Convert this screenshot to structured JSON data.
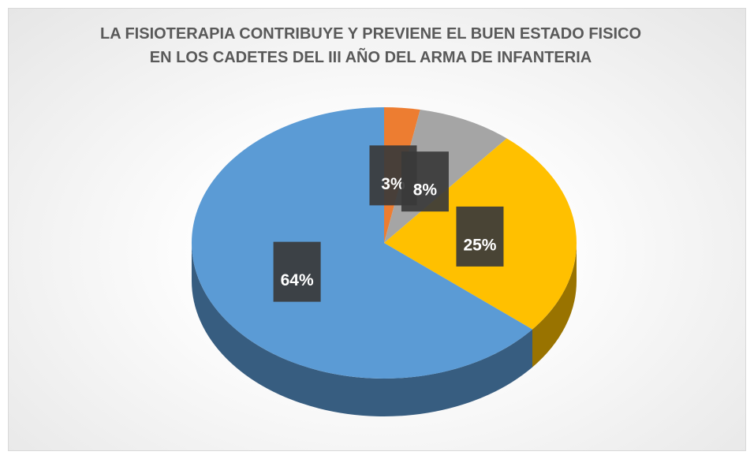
{
  "chart_data": {
    "type": "pie",
    "title": "LA FISIOTERAPIA CONTRIBUYE Y PREVIENE EL BUEN ESTADO FISICO EN LOS CADETES DEL III AÑO DEL ARMA DE INFANTERIA",
    "values": [
      3,
      8,
      25,
      64
    ],
    "value_labels": [
      "3%",
      "8%",
      "25%",
      "64%"
    ],
    "colors": [
      "#ed7d31",
      "#a5a5a5",
      "#ffc000",
      "#5b9bd5"
    ]
  }
}
